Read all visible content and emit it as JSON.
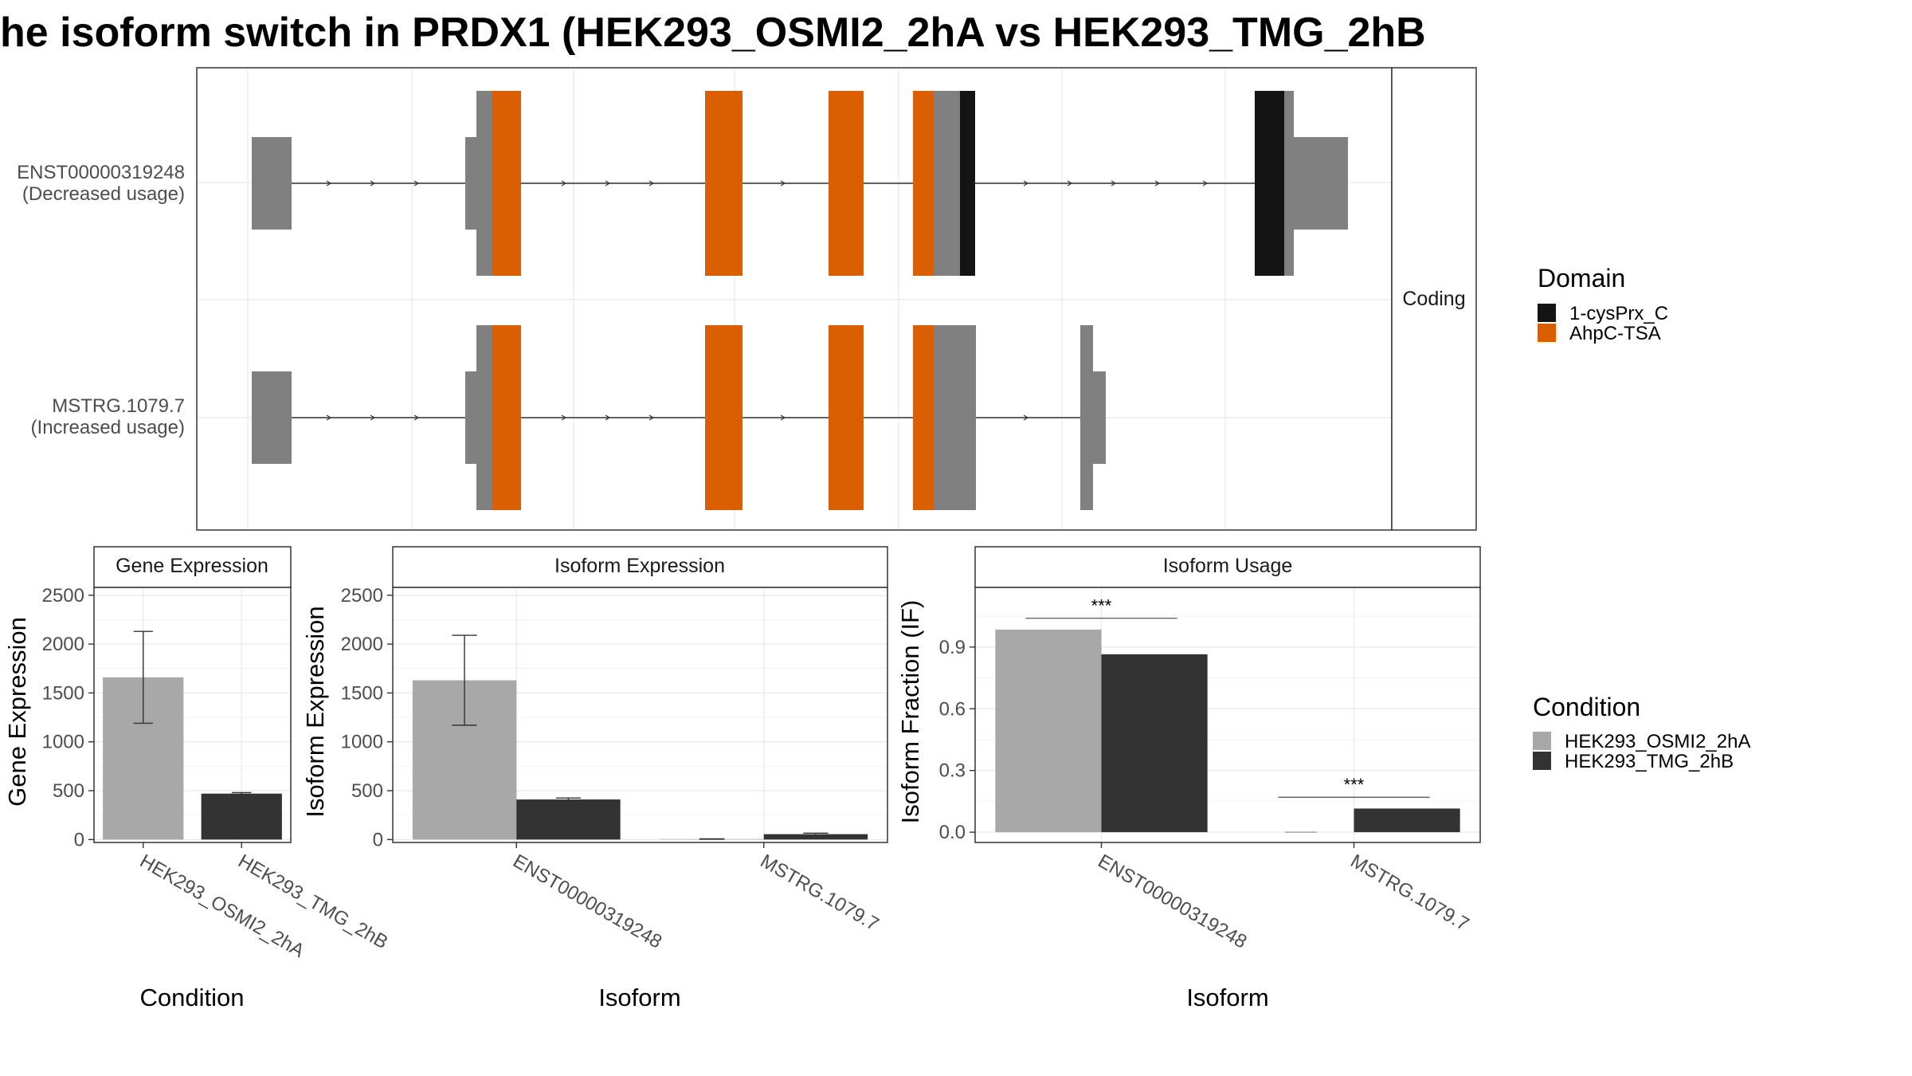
{
  "title": "he isoform switch in PRDX1 (HEK293_OSMI2_2hA vs HEK293_TMG_2hB",
  "colors": {
    "intron_line": "#333333",
    "utr": "#808080",
    "domain_1cysPrx_C": "#141414",
    "domain_AhpC_TSA": "#d95f02",
    "cond_OSMI2": "#a8a8a8",
    "cond_TMG": "#333333"
  },
  "transcript_plot": {
    "strip_label": "Coding",
    "transcripts": [
      {
        "id": "ENST00000319248",
        "note": "(Decreased usage)"
      },
      {
        "id": "MSTRG.1079.7",
        "note": "(Increased usage)"
      }
    ],
    "legend": {
      "title": "Domain",
      "items": [
        {
          "label": "1-cysPrx_C",
          "color": "#141414"
        },
        {
          "label": "AhpC-TSA",
          "color": "#d95f02"
        }
      ]
    }
  },
  "condition_legend": {
    "title": "Condition",
    "items": [
      {
        "label": "HEK293_OSMI2_2hA",
        "color": "#a8a8a8"
      },
      {
        "label": "HEK293_TMG_2hB",
        "color": "#333333"
      }
    ]
  },
  "chart_data": [
    {
      "type": "bar",
      "title": "Gene Expression",
      "xlabel": "Condition",
      "ylabel": "Gene Expression",
      "categories": [
        "HEK293_OSMI2_2hA",
        "HEK293_TMG_2hB"
      ],
      "series": [
        {
          "name": "HEK293_OSMI2_2hA",
          "values": [
            1660,
            null
          ],
          "error_low": [
            1190,
            null
          ],
          "error_high": [
            2130,
            null
          ]
        },
        {
          "name": "HEK293_TMG_2hB",
          "values": [
            null,
            470
          ],
          "error_low": [
            null,
            460
          ],
          "error_high": [
            null,
            480
          ]
        }
      ],
      "yticks": [
        "0",
        "500",
        "1000",
        "1500",
        "2000",
        "2500"
      ],
      "ylim": [
        -30,
        2580
      ],
      "grid": true
    },
    {
      "type": "bar",
      "title": "Isoform Expression",
      "xlabel": "Isoform",
      "ylabel": "Isoform Expression",
      "categories": [
        "ENST00000319248",
        "MSTRG.1079.7"
      ],
      "series": [
        {
          "name": "HEK293_OSMI2_2hA",
          "values": [
            1630,
            5
          ],
          "error_low": [
            1170,
            3
          ],
          "error_high": [
            2090,
            7
          ]
        },
        {
          "name": "HEK293_TMG_2hB",
          "values": [
            410,
            55
          ],
          "error_low": [
            395,
            45
          ],
          "error_high": [
            425,
            65
          ]
        }
      ],
      "yticks": [
        "0",
        "500",
        "1000",
        "1500",
        "2000",
        "2500"
      ],
      "ylim": [
        -30,
        2580
      ],
      "grid": true
    },
    {
      "type": "bar",
      "title": "Isoform Usage",
      "xlabel": "Isoform",
      "ylabel": "Isoform Fraction (IF)",
      "categories": [
        "ENST00000319248",
        "MSTRG.1079.7"
      ],
      "series": [
        {
          "name": "HEK293_OSMI2_2hA",
          "values": [
            0.985,
            0.0
          ]
        },
        {
          "name": "HEK293_TMG_2hB",
          "values": [
            0.865,
            0.115
          ]
        }
      ],
      "annotations": [
        {
          "category": "ENST00000319248",
          "text": "***",
          "y": 1.04
        },
        {
          "category": "MSTRG.1079.7",
          "text": "***",
          "y": 0.17
        }
      ],
      "yticks": [
        "0.0",
        "0.3",
        "0.6",
        "0.9"
      ],
      "ylim": [
        -0.05,
        1.19
      ],
      "grid": true
    }
  ]
}
